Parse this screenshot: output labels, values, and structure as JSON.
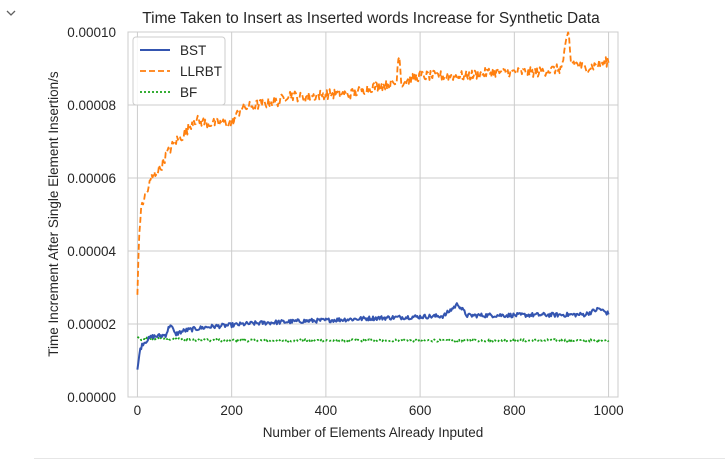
{
  "cell": {
    "collapse_icon": "chevron-down-icon"
  },
  "chart_data": {
    "type": "line",
    "title": "Time Taken to Insert as Inserted words Increase for Synthetic Data",
    "xlabel": "Number of Elements Already Inputed",
    "ylabel": "Time Increment After Single Element Insertion/s",
    "xlim": [
      -20,
      1020
    ],
    "ylim": [
      0.0,
      0.0001
    ],
    "xticks": [
      0,
      200,
      400,
      600,
      800,
      1000
    ],
    "xtick_labels": [
      "0",
      "200",
      "400",
      "600",
      "800",
      "1000"
    ],
    "yticks": [
      0.0,
      2e-05,
      4e-05,
      6e-05,
      8e-05,
      0.0001
    ],
    "ytick_labels": [
      "0.00000",
      "0.00002",
      "0.00004",
      "0.00006",
      "0.00008",
      "0.00010"
    ],
    "grid": true,
    "legend_position": "upper-left",
    "series": [
      {
        "name": "BST",
        "color": "#3455b0",
        "style": "solid",
        "x": [
          0,
          5,
          10,
          20,
          30,
          50,
          60,
          70,
          80,
          100,
          150,
          200,
          250,
          300,
          350,
          400,
          450,
          500,
          550,
          600,
          650,
          680,
          700,
          750,
          800,
          850,
          900,
          950,
          980,
          1000
        ],
        "y": [
          7.5e-06,
          1.25e-05,
          1.45e-05,
          1.55e-05,
          1.65e-05,
          1.68e-05,
          1.7e-05,
          2e-05,
          1.72e-05,
          1.82e-05,
          1.92e-05,
          1.97e-05,
          2.02e-05,
          2.05e-05,
          2.08e-05,
          2.1e-05,
          2.13e-05,
          2.16e-05,
          2.18e-05,
          2.2e-05,
          2.22e-05,
          2.55e-05,
          2.23e-05,
          2.24e-05,
          2.24e-05,
          2.25e-05,
          2.25e-05,
          2.26e-05,
          2.42e-05,
          2.28e-05
        ]
      },
      {
        "name": "LLRBT",
        "color": "#ff7f0e",
        "style": "dashed",
        "x": [
          0,
          2,
          5,
          10,
          20,
          30,
          50,
          60,
          80,
          100,
          120,
          150,
          200,
          220,
          250,
          300,
          320,
          350,
          400,
          450,
          500,
          550,
          555,
          560,
          600,
          650,
          700,
          750,
          800,
          850,
          900,
          915,
          920,
          950,
          1000
        ],
        "y": [
          2.8e-05,
          3.8e-05,
          4.8e-05,
          5.3e-05,
          5.6e-05,
          6e-05,
          6.3e-05,
          6.6e-05,
          7e-05,
          7.2e-05,
          7.6e-05,
          7.5e-05,
          7.5e-05,
          7.9e-05,
          8e-05,
          8.1e-05,
          8.3e-05,
          8.2e-05,
          8.3e-05,
          8.3e-05,
          8.5e-05,
          8.6e-05,
          9.6e-05,
          8.6e-05,
          8.8e-05,
          8.8e-05,
          8.8e-05,
          8.9e-05,
          8.9e-05,
          8.9e-05,
          9e-05,
          0.0001,
          9.2e-05,
          9e-05,
          9.2e-05
        ]
      },
      {
        "name": "BF",
        "color": "#1aa31a",
        "style": "dotted",
        "x": [
          0,
          5,
          10,
          20,
          50,
          100,
          150,
          200,
          300,
          400,
          500,
          600,
          700,
          800,
          900,
          1000
        ],
        "y": [
          1.65e-05,
          1.6e-05,
          1.55e-05,
          1.6e-05,
          1.6e-05,
          1.58e-05,
          1.56e-05,
          1.55e-05,
          1.55e-05,
          1.55e-05,
          1.55e-05,
          1.55e-05,
          1.55e-05,
          1.55e-05,
          1.55e-05,
          1.55e-05
        ]
      }
    ]
  }
}
